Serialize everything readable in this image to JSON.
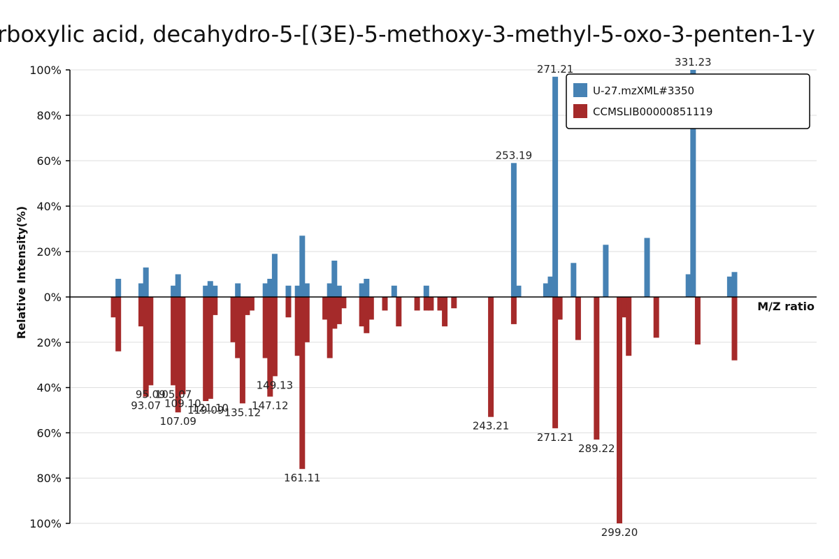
{
  "chart_data": {
    "type": "bar",
    "title": "rboxylic  acid,  decahydro-5-[(3E)-5-methoxy-3-methyl-5-oxo-3-penten-1-y",
    "xlabel": "M/Z ratio",
    "ylabel": "Relative Intensity(%)",
    "ylim": [
      -100,
      100
    ],
    "xlim": [
      60,
      385
    ],
    "y_ticks": [
      {
        "value": 100,
        "label": "100%"
      },
      {
        "value": 80,
        "label": "80%"
      },
      {
        "value": 60,
        "label": "60%"
      },
      {
        "value": 40,
        "label": "40%"
      },
      {
        "value": 20,
        "label": "20%"
      },
      {
        "value": 0,
        "label": "0%"
      },
      {
        "value": -20,
        "label": "20%"
      },
      {
        "value": -40,
        "label": "40%"
      },
      {
        "value": -60,
        "label": "60%"
      },
      {
        "value": -80,
        "label": "80%"
      },
      {
        "value": -100,
        "label": "100%"
      }
    ],
    "grid": true,
    "legend_position": "top-right",
    "series": [
      {
        "name": "U-27.mzXML#3350",
        "color": "#4682b4",
        "direction": "up",
        "peaks": [
          {
            "mz": 81.07,
            "intensity": 8
          },
          {
            "mz": 91.05,
            "intensity": 6
          },
          {
            "mz": 93.07,
            "intensity": 13
          },
          {
            "mz": 105.07,
            "intensity": 5
          },
          {
            "mz": 107.09,
            "intensity": 10
          },
          {
            "mz": 119.09,
            "intensity": 5
          },
          {
            "mz": 121.1,
            "intensity": 7
          },
          {
            "mz": 123.08,
            "intensity": 5
          },
          {
            "mz": 133.1,
            "intensity": 6
          },
          {
            "mz": 145.1,
            "intensity": 6
          },
          {
            "mz": 147.12,
            "intensity": 8
          },
          {
            "mz": 149.13,
            "intensity": 19
          },
          {
            "mz": 155.1,
            "intensity": 5
          },
          {
            "mz": 159.1,
            "intensity": 5
          },
          {
            "mz": 161.11,
            "intensity": 27
          },
          {
            "mz": 163.1,
            "intensity": 6
          },
          {
            "mz": 173.1,
            "intensity": 6
          },
          {
            "mz": 175.12,
            "intensity": 16
          },
          {
            "mz": 177.1,
            "intensity": 5
          },
          {
            "mz": 187.12,
            "intensity": 6
          },
          {
            "mz": 189.13,
            "intensity": 8
          },
          {
            "mz": 201.13,
            "intensity": 5
          },
          {
            "mz": 215.14,
            "intensity": 5
          },
          {
            "mz": 253.19,
            "intensity": 59
          },
          {
            "mz": 255.2,
            "intensity": 5
          },
          {
            "mz": 267.2,
            "intensity": 6
          },
          {
            "mz": 269.2,
            "intensity": 9
          },
          {
            "mz": 271.21,
            "intensity": 97
          },
          {
            "mz": 279.2,
            "intensity": 15
          },
          {
            "mz": 293.21,
            "intensity": 23
          },
          {
            "mz": 311.22,
            "intensity": 26
          },
          {
            "mz": 329.22,
            "intensity": 10
          },
          {
            "mz": 331.23,
            "intensity": 100
          },
          {
            "mz": 347.23,
            "intensity": 9
          },
          {
            "mz": 349.24,
            "intensity": 11
          }
        ]
      },
      {
        "name": "CCMSLIB00000851119",
        "color": "#a52a2a",
        "direction": "down",
        "peaks": [
          {
            "mz": 79.05,
            "intensity": 9
          },
          {
            "mz": 81.07,
            "intensity": 24
          },
          {
            "mz": 91.05,
            "intensity": 13
          },
          {
            "mz": 93.07,
            "intensity": 44
          },
          {
            "mz": 95.09,
            "intensity": 39
          },
          {
            "mz": 105.07,
            "intensity": 39
          },
          {
            "mz": 107.09,
            "intensity": 51
          },
          {
            "mz": 109.1,
            "intensity": 43
          },
          {
            "mz": 119.09,
            "intensity": 46
          },
          {
            "mz": 121.1,
            "intensity": 45
          },
          {
            "mz": 123.08,
            "intensity": 8
          },
          {
            "mz": 131.09,
            "intensity": 20
          },
          {
            "mz": 133.1,
            "intensity": 27
          },
          {
            "mz": 135.12,
            "intensity": 47
          },
          {
            "mz": 137.1,
            "intensity": 8
          },
          {
            "mz": 139.1,
            "intensity": 6
          },
          {
            "mz": 145.1,
            "intensity": 27
          },
          {
            "mz": 147.12,
            "intensity": 44
          },
          {
            "mz": 149.13,
            "intensity": 35
          },
          {
            "mz": 155.1,
            "intensity": 9
          },
          {
            "mz": 159.1,
            "intensity": 26
          },
          {
            "mz": 161.11,
            "intensity": 76
          },
          {
            "mz": 163.1,
            "intensity": 20
          },
          {
            "mz": 171.1,
            "intensity": 10
          },
          {
            "mz": 173.1,
            "intensity": 27
          },
          {
            "mz": 175.12,
            "intensity": 14
          },
          {
            "mz": 177.1,
            "intensity": 12
          },
          {
            "mz": 179.1,
            "intensity": 5
          },
          {
            "mz": 187.12,
            "intensity": 13
          },
          {
            "mz": 189.13,
            "intensity": 16
          },
          {
            "mz": 191.1,
            "intensity": 10
          },
          {
            "mz": 197.1,
            "intensity": 6
          },
          {
            "mz": 203.13,
            "intensity": 13
          },
          {
            "mz": 211.13,
            "intensity": 6
          },
          {
            "mz": 215.14,
            "intensity": 6
          },
          {
            "mz": 217.13,
            "intensity": 6
          },
          {
            "mz": 221.13,
            "intensity": 6
          },
          {
            "mz": 223.14,
            "intensity": 13
          },
          {
            "mz": 227.15,
            "intensity": 5
          },
          {
            "mz": 243.21,
            "intensity": 53
          },
          {
            "mz": 253.19,
            "intensity": 12
          },
          {
            "mz": 271.21,
            "intensity": 58
          },
          {
            "mz": 273.2,
            "intensity": 10
          },
          {
            "mz": 281.2,
            "intensity": 19
          },
          {
            "mz": 289.22,
            "intensity": 63
          },
          {
            "mz": 299.2,
            "intensity": 100
          },
          {
            "mz": 301.21,
            "intensity": 9
          },
          {
            "mz": 303.21,
            "intensity": 26
          },
          {
            "mz": 315.22,
            "intensity": 18
          },
          {
            "mz": 333.23,
            "intensity": 21
          },
          {
            "mz": 349.24,
            "intensity": 28
          }
        ]
      }
    ],
    "peak_labels": [
      {
        "series": 0,
        "mz": 253.19,
        "intensity": 59,
        "text": "253.19"
      },
      {
        "series": 0,
        "mz": 271.21,
        "intensity": 97,
        "text": "271.21"
      },
      {
        "series": 0,
        "mz": 331.23,
        "intensity": 100,
        "text": "331.23"
      },
      {
        "series": 1,
        "mz": 93.07,
        "intensity": 44,
        "text": "93.07"
      },
      {
        "series": 1,
        "mz": 95.09,
        "intensity": 39,
        "text": "95.09"
      },
      {
        "series": 1,
        "mz": 105.07,
        "intensity": 39,
        "text": "105.07"
      },
      {
        "series": 1,
        "mz": 107.09,
        "intensity": 51,
        "text": "107.09"
      },
      {
        "series": 1,
        "mz": 109.1,
        "intensity": 43,
        "text": "109.10"
      },
      {
        "series": 1,
        "mz": 119.09,
        "intensity": 46,
        "text": "119.09"
      },
      {
        "series": 1,
        "mz": 121.1,
        "intensity": 45,
        "text": "121.10"
      },
      {
        "series": 1,
        "mz": 135.12,
        "intensity": 47,
        "text": "135.12"
      },
      {
        "series": 1,
        "mz": 147.12,
        "intensity": 44,
        "text": "147.12"
      },
      {
        "series": 1,
        "mz": 149.13,
        "intensity": 35,
        "text": "149.13"
      },
      {
        "series": 1,
        "mz": 161.11,
        "intensity": 76,
        "text": "161.11"
      },
      {
        "series": 1,
        "mz": 243.21,
        "intensity": 53,
        "text": "243.21"
      },
      {
        "series": 1,
        "mz": 271.21,
        "intensity": 58,
        "text": "271.21"
      },
      {
        "series": 1,
        "mz": 289.22,
        "intensity": 63,
        "text": "289.22"
      },
      {
        "series": 1,
        "mz": 299.2,
        "intensity": 100,
        "text": "299.20"
      }
    ]
  }
}
